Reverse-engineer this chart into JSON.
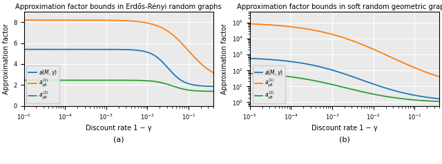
{
  "title_left": "Approximation factor bounds in Erdős-Rényi random graphs",
  "title_right": "Approximation factor bounds in soft random geometric graphs",
  "xlabel": "Discount rate 1 − γ",
  "ylabel": "Approximation factor",
  "caption_a": "(a)",
  "caption_b": "(b)",
  "color_blue": "#1f77b4",
  "color_orange": "#ff7f0e",
  "color_green": "#2ca02c"
}
